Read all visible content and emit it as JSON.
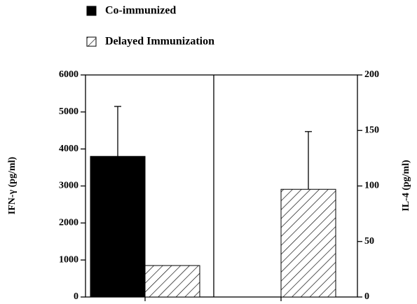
{
  "chart_data": {
    "type": "bar",
    "ylabel": "IFN-γ (pg/ml)",
    "y2label": "IL-4 (pg/ml)",
    "categories": [
      null,
      null
    ],
    "series": [
      {
        "name": "Co-immunized",
        "color": "#000000",
        "hatch": false,
        "values": [
          3800,
          null
        ],
        "errors": [
          1350,
          null
        ]
      },
      {
        "name": "Delayed Immunization",
        "color": "#ffffff",
        "hatch": true,
        "values": [
          850,
          null
        ],
        "errors": [
          null,
          null
        ]
      },
      {
        "axis": "y2",
        "color": "#ffffff",
        "hatch": true,
        "values": [
          null,
          97
        ],
        "errors": [
          null,
          52
        ]
      }
    ],
    "ylim": [
      0,
      6000
    ],
    "yticks": [
      0,
      1000,
      2000,
      3000,
      4000,
      5000,
      6000
    ],
    "y2lim": [
      0,
      200
    ],
    "y2ticks": [
      0,
      50,
      100,
      150,
      200
    ],
    "grid": false
  }
}
